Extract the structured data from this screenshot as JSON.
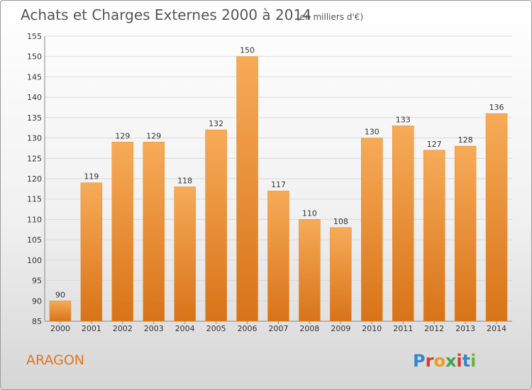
{
  "header": {
    "title": "Achats et Charges Externes 2000 à 2014",
    "subtitle": "(en milliers d'€)"
  },
  "footer": {
    "commune": "ARAGON",
    "logo_text": "Proxiti"
  },
  "colors": {
    "bar_light": "#f7ab58",
    "bar_dark": "#d87318",
    "commune_text": "#e0751f",
    "logo_letters": [
      "#3a86c9",
      "#e2342b",
      "#f29a1a",
      "#3aa648",
      "#e2342b",
      "#3a86c9",
      "#6bb33d"
    ]
  },
  "chart_data": {
    "type": "bar",
    "categories": [
      "2000",
      "2001",
      "2002",
      "2003",
      "2004",
      "2005",
      "2006",
      "2007",
      "2008",
      "2009",
      "2010",
      "2011",
      "2012",
      "2013",
      "2014"
    ],
    "values": [
      90,
      119,
      129,
      129,
      118,
      132,
      150,
      117,
      110,
      108,
      130,
      133,
      127,
      128,
      136
    ],
    "title": "Achats et Charges Externes 2000 à 2014",
    "ylim": [
      85,
      155
    ],
    "yticks": [
      85,
      90,
      95,
      100,
      105,
      110,
      115,
      120,
      125,
      130,
      135,
      140,
      145,
      150,
      155
    ],
    "grid": true,
    "legend": "none"
  }
}
